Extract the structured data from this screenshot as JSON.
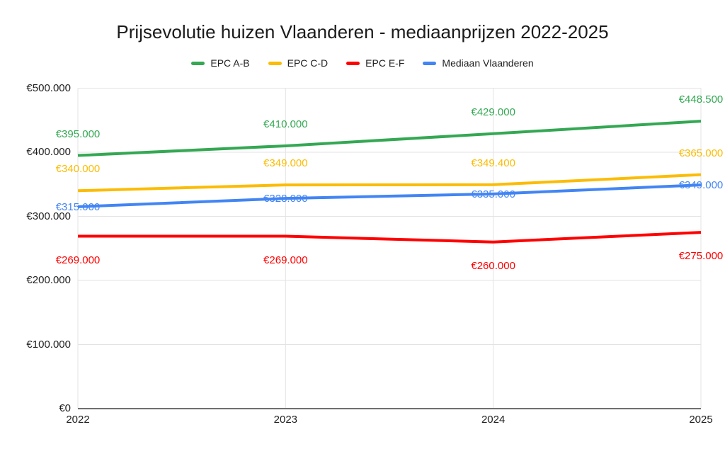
{
  "title": "Prijsevolutie huizen Vlaanderen - mediaanprijzen 2022-2025",
  "chart_data": {
    "type": "line",
    "title": "Prijsevolutie huizen Vlaanderen - mediaanprijzen 2022-2025",
    "categories": [
      "2022",
      "2023",
      "2024",
      "2025"
    ],
    "series": [
      {
        "name": "EPC A-B",
        "color": "#34a853",
        "values": [
          395000,
          410000,
          429000,
          448500
        ],
        "labels": [
          "€395.000",
          "€410.000",
          "€429.000",
          "€448.500"
        ],
        "label_dy": -30
      },
      {
        "name": "EPC C-D",
        "color": "#fbbc04",
        "values": [
          340000,
          349000,
          349400,
          365000
        ],
        "labels": [
          "€340.000",
          "€349.000",
          "€349.400",
          "€365.000"
        ],
        "label_dy": -30
      },
      {
        "name": "EPC E-F",
        "color": "#ff0000",
        "values": [
          269000,
          269000,
          260000,
          275000
        ],
        "labels": [
          "€269.000",
          "€269.000",
          "€260.000",
          "€275.000"
        ],
        "label_dy": 34
      },
      {
        "name": "Mediaan Vlaanderen",
        "color": "#4285f4",
        "values": [
          315000,
          328000,
          335000,
          349000
        ],
        "labels": [
          "€315.000",
          "€328.000",
          "€335.000",
          "€349.000"
        ],
        "label_dy": 1
      }
    ],
    "y_ticks": [
      {
        "label": "€500.000",
        "value": 500000
      },
      {
        "label": "€400.000",
        "value": 400000
      },
      {
        "label": "€300.000",
        "value": 300000
      },
      {
        "label": "€200.000",
        "value": 200000
      },
      {
        "label": "€100.000",
        "value": 100000
      },
      {
        "label": "€0",
        "value": 0
      }
    ],
    "ylim": [
      0,
      500000
    ],
    "grid": true,
    "legend_position": "top"
  }
}
